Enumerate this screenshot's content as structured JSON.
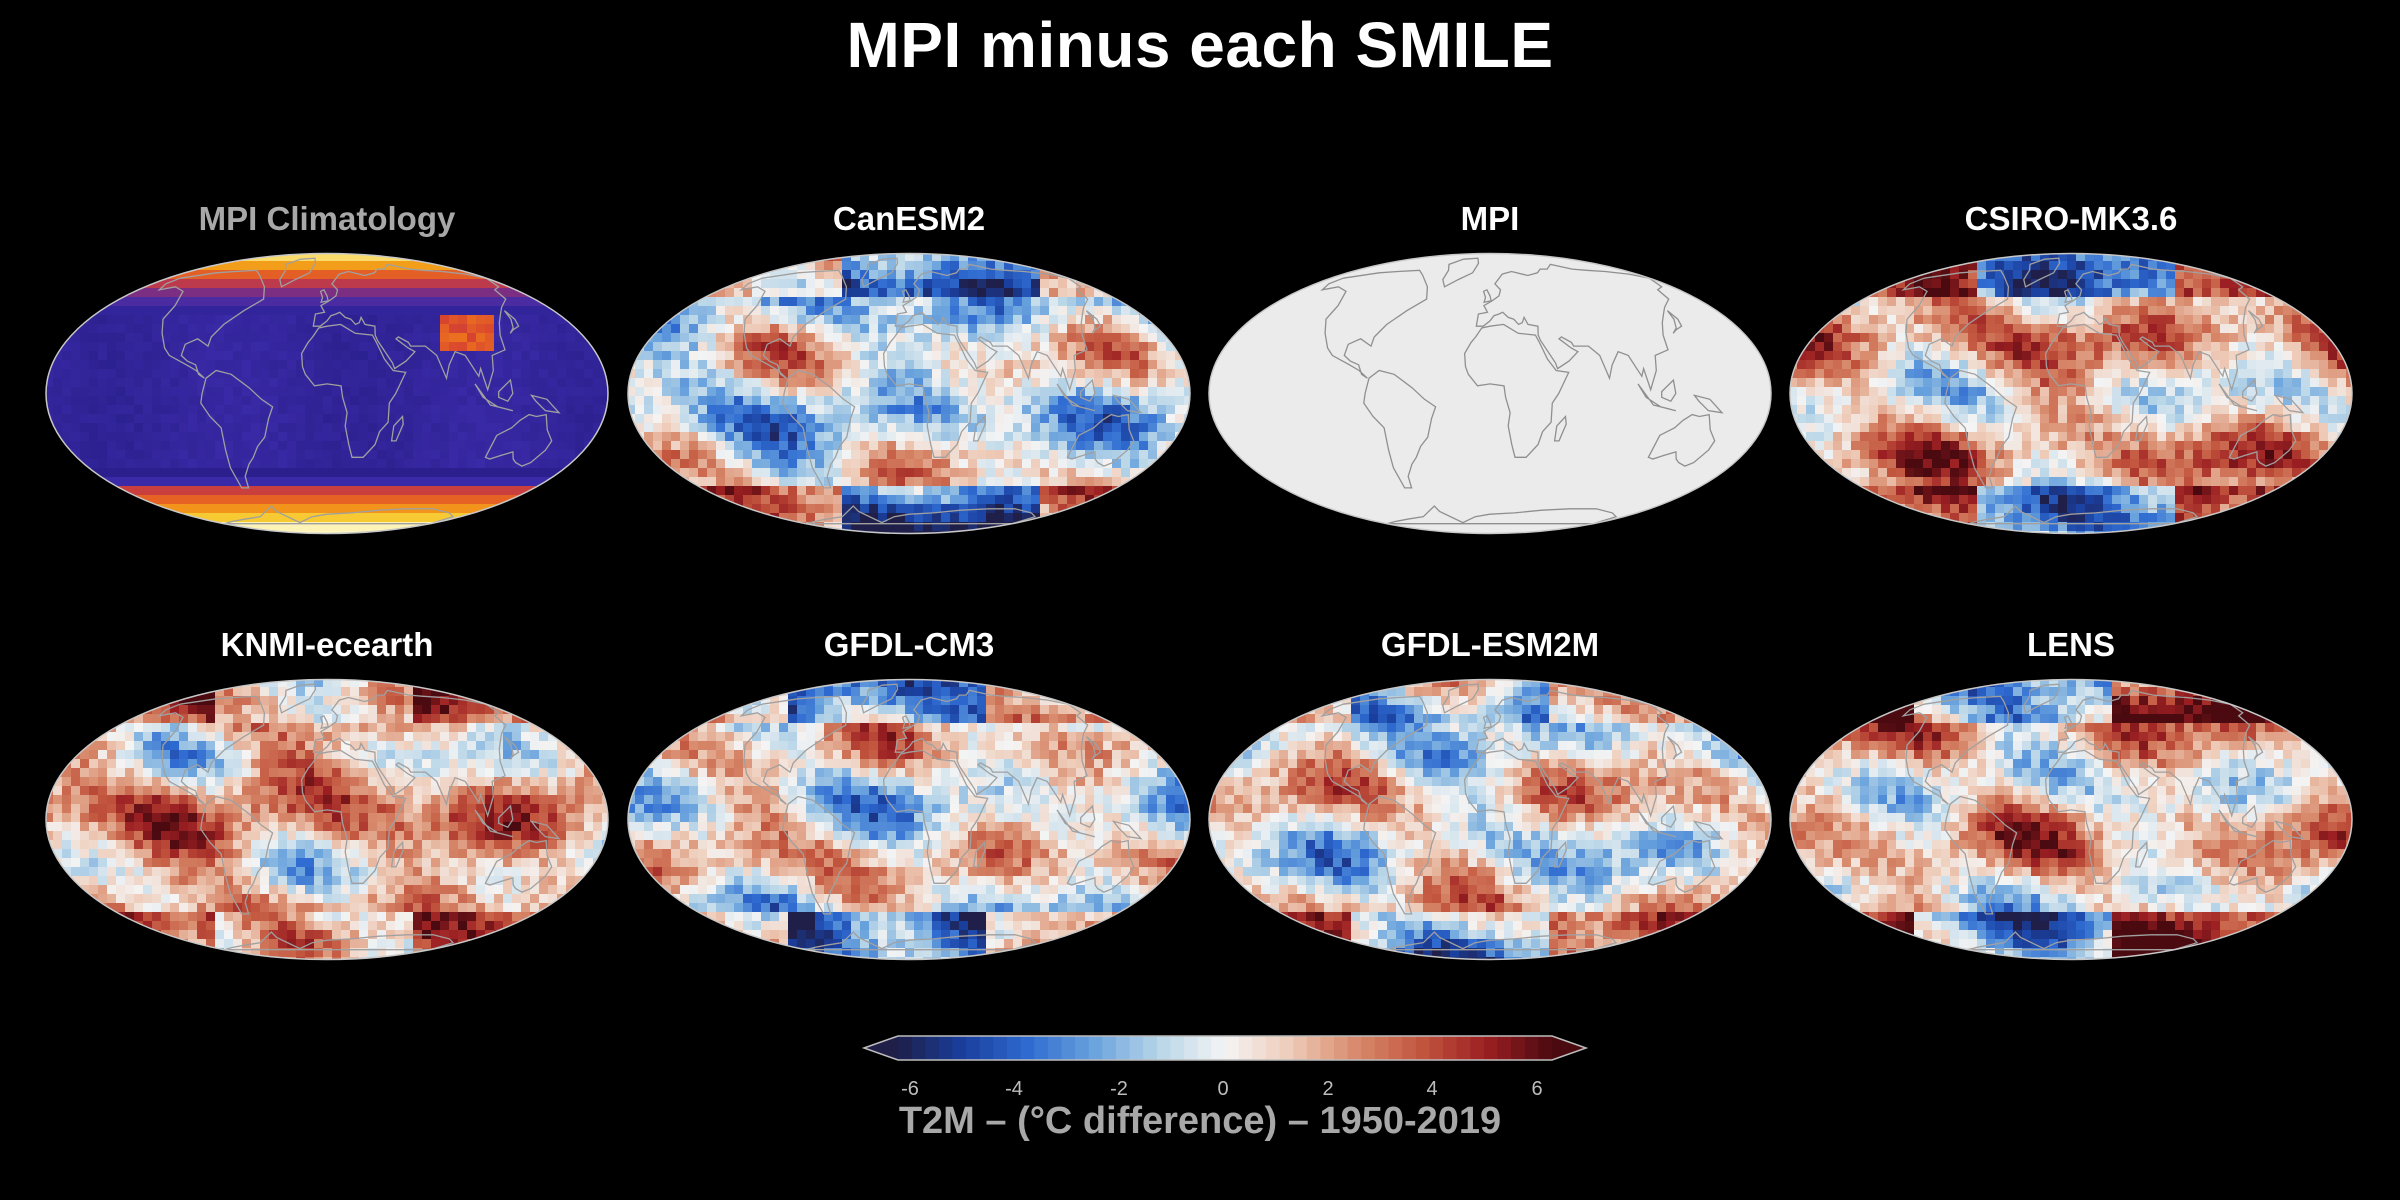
{
  "page": {
    "title": "MPI minus each SMILE"
  },
  "panels": [
    {
      "title": "MPI Climatology",
      "style": "climatology",
      "title_color": "#a8a8a8"
    },
    {
      "title": "CanESM2",
      "style": "difference"
    },
    {
      "title": "MPI",
      "style": "blank"
    },
    {
      "title": "CSIRO-MK3.6",
      "style": "difference"
    },
    {
      "title": "KNMI-ecearth",
      "style": "difference"
    },
    {
      "title": "GFDL-CM3",
      "style": "difference"
    },
    {
      "title": "GFDL-ESM2M",
      "style": "difference"
    },
    {
      "title": "LENS",
      "style": "difference"
    }
  ],
  "colorbar": {
    "label": "T2M – (°C difference) – 1950-2019",
    "ticks": [
      "-6",
      "-4",
      "-2",
      "0",
      "2",
      "4",
      "6"
    ],
    "range": [
      -6,
      6
    ],
    "extend": "both",
    "colormap": [
      "#1f1f4a",
      "#1a3f9e",
      "#2f6bd1",
      "#6aa3dd",
      "#b9d6e8",
      "#f4f4f4",
      "#eecbb8",
      "#d88a6c",
      "#c2553e",
      "#9b1f22",
      "#4a0a10"
    ]
  },
  "colors": {
    "background": "#000000",
    "map_outline": "#c8c8c8",
    "coastline": "#9a9a9a",
    "blank_map": "#ebebeb"
  }
}
